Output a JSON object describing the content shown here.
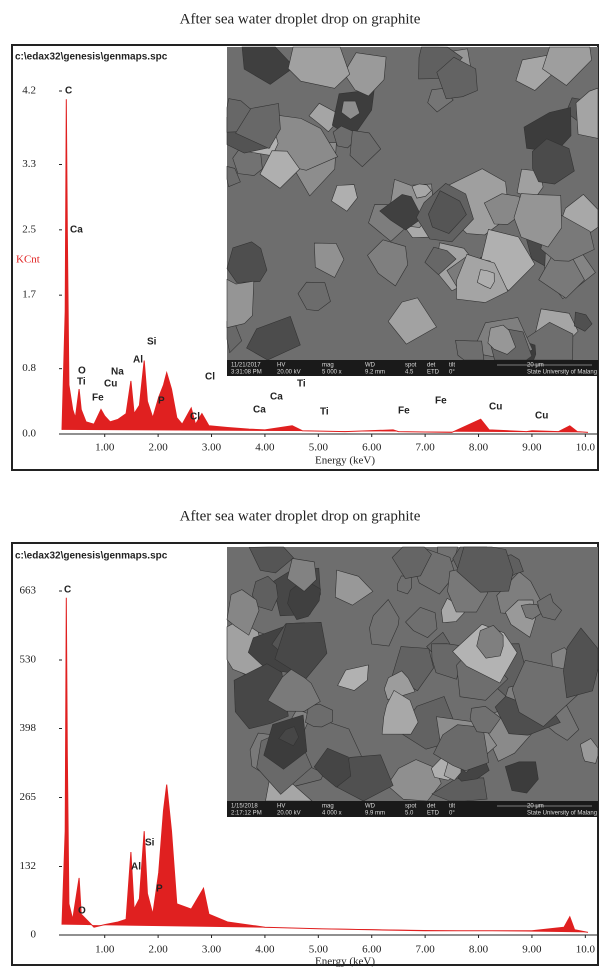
{
  "chart_data": [
    {
      "type": "area",
      "title": "After sea water droplet drop on graphite",
      "path_label": "c:\\edax32\\genesis\\genmaps.spc",
      "ylabel": "KCnt",
      "xlabel": "Energy (keV)",
      "color": "#e02020",
      "xlim": [
        0.2,
        10.05
      ],
      "ylim": [
        0,
        4.2
      ],
      "xticks": [
        {
          "value": 1,
          "label": "1.00"
        },
        {
          "value": 2,
          "label": "2.00"
        },
        {
          "value": 3,
          "label": "3.00"
        },
        {
          "value": 4,
          "label": "4.00"
        },
        {
          "value": 5,
          "label": "5.00"
        },
        {
          "value": 6,
          "label": "6.00"
        },
        {
          "value": 7,
          "label": "7.00"
        },
        {
          "value": 8,
          "label": "8.00"
        },
        {
          "value": 9,
          "label": "9.00"
        },
        {
          "value": 10,
          "label": "10.0"
        }
      ],
      "yticks": [
        {
          "value": 0,
          "label": "0.0"
        },
        0.8,
        1.7,
        2.5,
        3.3,
        4.2
      ],
      "x": [
        0.2,
        0.26,
        0.28,
        0.3,
        0.33,
        0.4,
        0.45,
        0.52,
        0.56,
        0.65,
        0.8,
        0.93,
        1.0,
        1.1,
        1.25,
        1.4,
        1.49,
        1.55,
        1.65,
        1.74,
        1.8,
        1.9,
        2.01,
        2.1,
        2.16,
        2.25,
        2.35,
        2.45,
        2.62,
        2.7,
        2.82,
        2.95,
        3.3,
        3.7,
        4.0,
        4.51,
        4.7,
        5.5,
        6.4,
        6.5,
        7.5,
        8.04,
        8.2,
        8.9,
        9.0,
        9.5,
        9.71,
        9.85,
        10.05
      ],
      "values": [
        0.05,
        1.5,
        4.1,
        2.5,
        0.6,
        0.3,
        0.2,
        0.55,
        0.3,
        0.15,
        0.12,
        0.3,
        0.22,
        0.15,
        0.18,
        0.25,
        0.65,
        0.25,
        0.35,
        0.9,
        0.4,
        0.2,
        0.45,
        0.6,
        0.75,
        0.55,
        0.2,
        0.12,
        0.32,
        0.12,
        0.25,
        0.1,
        0.08,
        0.06,
        0.05,
        0.1,
        0.04,
        0.03,
        0.05,
        0.03,
        0.02,
        0.18,
        0.05,
        0.03,
        0.04,
        0.03,
        0.1,
        0.03,
        0.02
      ],
      "annotations": [
        "C",
        "Ca",
        "O",
        "Ti",
        "Fe",
        "Cu",
        "Na",
        "Al",
        "Si",
        "P",
        "Cl",
        "Cl",
        "Ca",
        "Ca",
        "Ti",
        "Ti",
        "Fe",
        "Fe",
        "Cu",
        "Cu"
      ],
      "sem_header": [
        "11/21/2017",
        "HV",
        "mag",
        "WD",
        "spot",
        "det",
        "tilt",
        "20 μm"
      ],
      "sem_values": [
        "3:31:08 PM",
        "20.00 kV",
        "5 000 x",
        "9.2 mm",
        "4.5",
        "ETD",
        "0°",
        "State University of Malang"
      ]
    },
    {
      "type": "area",
      "title": "After sea water droplet drop on graphite",
      "path_label": "c:\\edax32\\genesis\\genmaps.spc",
      "xlabel": "Energy (keV)",
      "color": "#e02020",
      "xlim": [
        0.2,
        10.05
      ],
      "ylim": [
        0,
        663
      ],
      "xticks": [
        {
          "value": 1,
          "label": "1.00"
        },
        {
          "value": 2,
          "label": "2.00"
        },
        {
          "value": 3,
          "label": "3.00"
        },
        {
          "value": 4,
          "label": "4.00"
        },
        {
          "value": 5,
          "label": "5.00"
        },
        {
          "value": 6,
          "label": "6.00"
        },
        {
          "value": 7,
          "label": "7.00"
        },
        {
          "value": 8,
          "label": "8.00"
        },
        {
          "value": 9,
          "label": "9.00"
        },
        {
          "value": 10,
          "label": "10.0"
        }
      ],
      "yticks": [
        0,
        132,
        265,
        398,
        530,
        663
      ],
      "x": [
        0.2,
        0.26,
        0.28,
        0.3,
        0.33,
        0.4,
        0.52,
        0.56,
        0.8,
        1.0,
        1.25,
        1.4,
        1.49,
        1.55,
        1.65,
        1.74,
        1.8,
        1.9,
        2.01,
        2.1,
        2.16,
        2.25,
        2.35,
        2.62,
        2.85,
        2.95,
        3.3,
        4.0,
        5.0,
        6.0,
        7.0,
        8.0,
        9.0,
        9.6,
        9.71,
        9.8,
        10.05
      ],
      "values": [
        20,
        200,
        650,
        350,
        60,
        30,
        110,
        40,
        15,
        20,
        25,
        30,
        160,
        50,
        70,
        200,
        80,
        40,
        120,
        240,
        290,
        200,
        60,
        50,
        90,
        40,
        25,
        15,
        12,
        10,
        8,
        8,
        8,
        15,
        35,
        10,
        5
      ],
      "annotations": [
        "C",
        "Al",
        "Si",
        "P",
        "O"
      ],
      "sem_header": [
        "1/15/2018",
        "HV",
        "mag",
        "WD",
        "spot",
        "det",
        "tilt",
        "20 μm"
      ],
      "sem_values": [
        "2:17:12 PM",
        "20.00 kV",
        "4 000 x",
        "9.9 mm",
        "5.0",
        "ETD",
        "0°",
        "State University of Malang"
      ]
    }
  ]
}
